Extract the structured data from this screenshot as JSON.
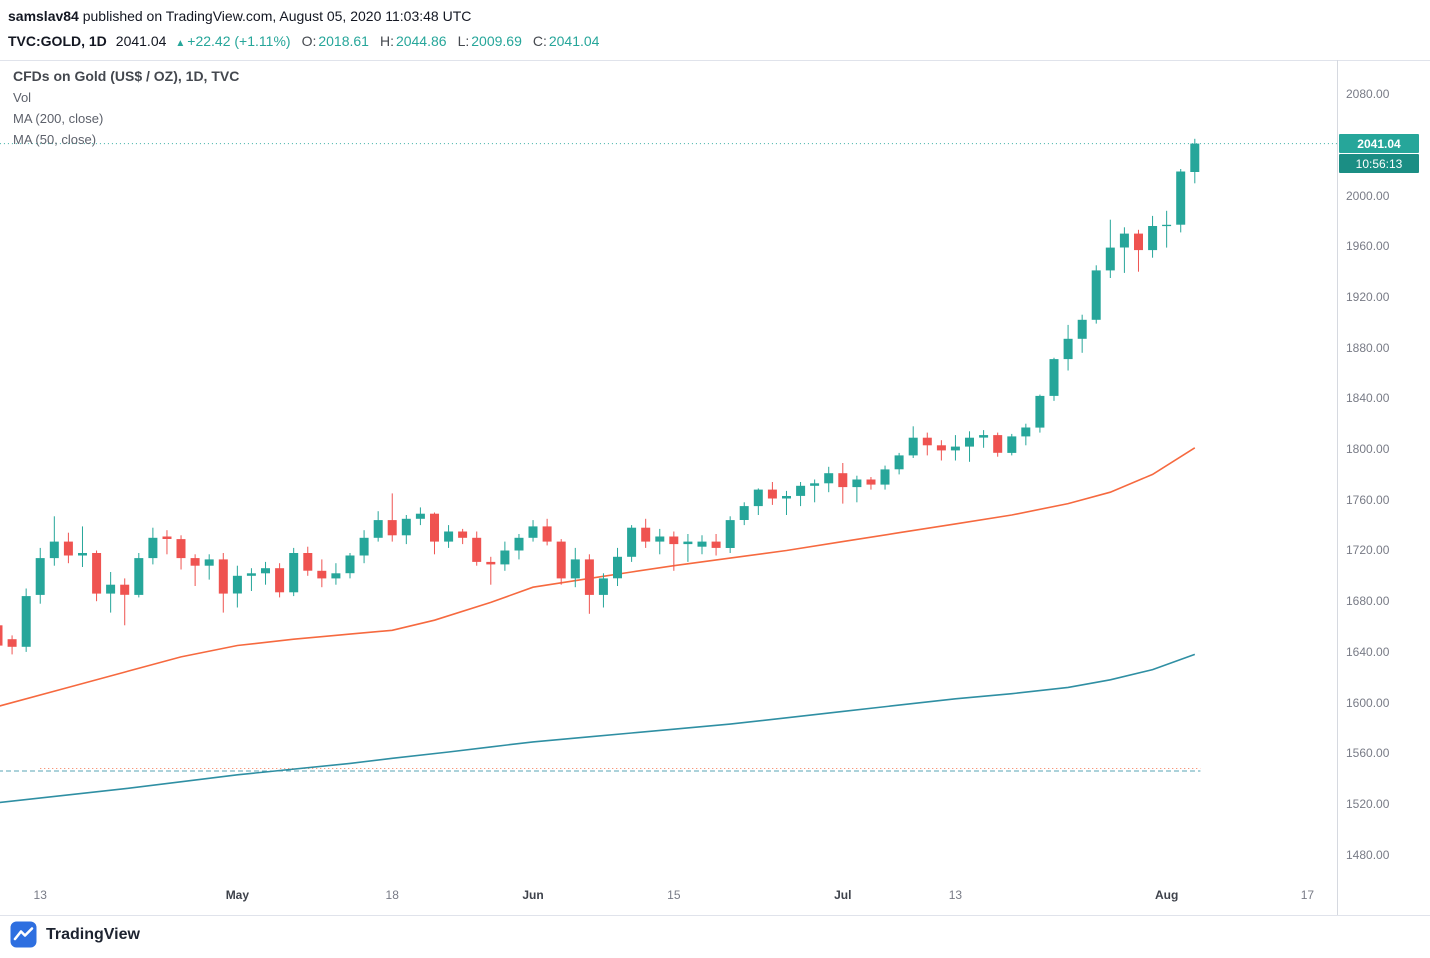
{
  "header": {
    "author": "samslav84",
    "published_text": " published on TradingView.com, August 05, 2020 11:03:48 UTC",
    "symbol": "TVC:GOLD, 1D",
    "last_price": "2041.04",
    "arrow": "▲",
    "change": "+22.42 (+1.11%)",
    "o_label": "O:",
    "o": "2018.61",
    "h_label": "H:",
    "h": "2044.86",
    "l_label": "L:",
    "l": "2009.69",
    "c_label": "C:",
    "c": "2041.04"
  },
  "legend": {
    "title": "CFDs on Gold (US$ / OZ), 1D, TVC",
    "items": [
      "Vol",
      "MA (200, close)",
      "MA (50, close)"
    ]
  },
  "price_axis": {
    "ticks": [
      "2080.00",
      "2000.00",
      "1960.00",
      "1920.00",
      "1880.00",
      "1840.00",
      "1800.00",
      "1760.00",
      "1720.00",
      "1680.00",
      "1640.00",
      "1600.00",
      "1560.00",
      "1520.00",
      "1480.00"
    ],
    "last_price_label": "2041.04",
    "last_price_value": 2041.04,
    "countdown": "10:56:13"
  },
  "footer": {
    "brand": "TradingView"
  },
  "colors": {
    "up": "#26a69a",
    "down": "#ef5350",
    "ma50": "#f6693f",
    "ma200": "#2f8fa3",
    "price_badge_bg": "#26a69a",
    "countdown_badge_bg": "#1b8e84",
    "change_text": "#26a69a"
  },
  "chart_data": {
    "type": "candlestick",
    "symbol": "TVC:GOLD",
    "timeframe": "1D",
    "title": "CFDs on Gold (US$ / OZ), 1D, TVC",
    "ylim": [
      1460,
      2107
    ],
    "price_tick_step": 40,
    "time_ticks": [
      {
        "label": "13",
        "i": 3,
        "major": false
      },
      {
        "label": "May",
        "i": 17,
        "major": true
      },
      {
        "label": "18",
        "i": 28,
        "major": false
      },
      {
        "label": "Jun",
        "i": 38,
        "major": true
      },
      {
        "label": "15",
        "i": 48,
        "major": false
      },
      {
        "label": "Jul",
        "i": 60,
        "major": true
      },
      {
        "label": "13",
        "i": 68,
        "major": false
      },
      {
        "label": "Aug",
        "i": 83,
        "major": true
      },
      {
        "label": "17",
        "i": 93,
        "major": false
      }
    ],
    "candles_columns": [
      "date",
      "open",
      "high",
      "low",
      "close"
    ],
    "candles": [
      [
        "2020-04-07",
        1661,
        1663,
        1640,
        1645
      ],
      [
        "2020-04-08",
        1650,
        1653,
        1638,
        1644
      ],
      [
        "2020-04-09",
        1644,
        1690,
        1640,
        1684
      ],
      [
        "2020-04-13",
        1685,
        1722,
        1678,
        1714
      ],
      [
        "2020-04-14",
        1714,
        1747,
        1708,
        1727
      ],
      [
        "2020-04-15",
        1727,
        1734,
        1710,
        1716
      ],
      [
        "2020-04-16",
        1716,
        1739,
        1707,
        1718
      ],
      [
        "2020-04-17",
        1718,
        1720,
        1680,
        1686
      ],
      [
        "2020-04-20",
        1686,
        1703,
        1671,
        1693
      ],
      [
        "2020-04-21",
        1693,
        1698,
        1661,
        1685
      ],
      [
        "2020-04-22",
        1685,
        1718,
        1683,
        1714
      ],
      [
        "2020-04-23",
        1714,
        1738,
        1709,
        1730
      ],
      [
        "2020-04-24",
        1731,
        1736,
        1717,
        1729
      ],
      [
        "2020-04-27",
        1729,
        1732,
        1705,
        1714
      ],
      [
        "2020-04-28",
        1714,
        1717,
        1692,
        1708
      ],
      [
        "2020-04-29",
        1708,
        1717,
        1697,
        1713
      ],
      [
        "2020-04-30",
        1713,
        1718,
        1671,
        1686
      ],
      [
        "2020-05-01",
        1686,
        1708,
        1675,
        1700
      ],
      [
        "2020-05-04",
        1700,
        1706,
        1688,
        1702
      ],
      [
        "2020-05-05",
        1702,
        1711,
        1693,
        1706
      ],
      [
        "2020-05-06",
        1706,
        1710,
        1683,
        1687
      ],
      [
        "2020-05-07",
        1687,
        1722,
        1684,
        1718
      ],
      [
        "2020-05-08",
        1718,
        1723,
        1700,
        1704
      ],
      [
        "2020-05-11",
        1704,
        1713,
        1691,
        1698
      ],
      [
        "2020-05-12",
        1698,
        1710,
        1693,
        1702
      ],
      [
        "2020-05-13",
        1702,
        1718,
        1698,
        1716
      ],
      [
        "2020-05-14",
        1716,
        1736,
        1710,
        1730
      ],
      [
        "2020-05-15",
        1730,
        1751,
        1727,
        1744
      ],
      [
        "2020-05-18",
        1744,
        1765,
        1727,
        1732
      ],
      [
        "2020-05-19",
        1732,
        1748,
        1725,
        1745
      ],
      [
        "2020-05-20",
        1745,
        1754,
        1740,
        1749
      ],
      [
        "2020-05-21",
        1749,
        1750,
        1717,
        1727
      ],
      [
        "2020-05-22",
        1727,
        1740,
        1722,
        1735
      ],
      [
        "2020-05-25",
        1735,
        1737,
        1725,
        1730
      ],
      [
        "2020-05-26",
        1730,
        1735,
        1708,
        1711
      ],
      [
        "2020-05-27",
        1711,
        1715,
        1693,
        1709
      ],
      [
        "2020-05-28",
        1709,
        1727,
        1704,
        1720
      ],
      [
        "2020-05-29",
        1720,
        1733,
        1713,
        1730
      ],
      [
        "2020-06-01",
        1730,
        1744,
        1727,
        1739
      ],
      [
        "2020-06-02",
        1739,
        1745,
        1724,
        1727
      ],
      [
        "2020-06-03",
        1727,
        1729,
        1693,
        1698
      ],
      [
        "2020-06-04",
        1698,
        1722,
        1691,
        1713
      ],
      [
        "2020-06-05",
        1713,
        1717,
        1670,
        1685
      ],
      [
        "2020-06-08",
        1685,
        1702,
        1675,
        1698
      ],
      [
        "2020-06-09",
        1698,
        1722,
        1692,
        1715
      ],
      [
        "2020-06-10",
        1715,
        1740,
        1711,
        1738
      ],
      [
        "2020-06-11",
        1738,
        1745,
        1722,
        1727
      ],
      [
        "2020-06-12",
        1727,
        1737,
        1717,
        1731
      ],
      [
        "2020-06-15",
        1731,
        1735,
        1704,
        1725
      ],
      [
        "2020-06-16",
        1725,
        1733,
        1711,
        1727
      ],
      [
        "2020-06-17",
        1723,
        1732,
        1717,
        1727
      ],
      [
        "2020-06-18",
        1727,
        1733,
        1716,
        1722
      ],
      [
        "2020-06-19",
        1722,
        1747,
        1718,
        1744
      ],
      [
        "2020-06-22",
        1744,
        1758,
        1740,
        1755
      ],
      [
        "2020-06-23",
        1755,
        1769,
        1748,
        1768
      ],
      [
        "2020-06-24",
        1768,
        1774,
        1756,
        1761
      ],
      [
        "2020-06-25",
        1761,
        1767,
        1748,
        1763
      ],
      [
        "2020-06-26",
        1763,
        1774,
        1755,
        1771
      ],
      [
        "2020-06-29",
        1771,
        1776,
        1758,
        1773
      ],
      [
        "2020-06-30",
        1773,
        1786,
        1766,
        1781
      ],
      [
        "2020-07-01",
        1781,
        1789,
        1757,
        1770
      ],
      [
        "2020-07-02",
        1770,
        1779,
        1758,
        1776
      ],
      [
        "2020-07-03",
        1776,
        1778,
        1768,
        1772
      ],
      [
        "2020-07-06",
        1772,
        1787,
        1768,
        1784
      ],
      [
        "2020-07-07",
        1784,
        1797,
        1780,
        1795
      ],
      [
        "2020-07-08",
        1795,
        1818,
        1793,
        1809
      ],
      [
        "2020-07-09",
        1809,
        1813,
        1795,
        1803
      ],
      [
        "2020-07-10",
        1803,
        1807,
        1791,
        1799
      ],
      [
        "2020-07-13",
        1799,
        1811,
        1791,
        1802
      ],
      [
        "2020-07-14",
        1802,
        1814,
        1790,
        1809
      ],
      [
        "2020-07-15",
        1809,
        1815,
        1801,
        1811
      ],
      [
        "2020-07-16",
        1811,
        1813,
        1794,
        1797
      ],
      [
        "2020-07-17",
        1797,
        1812,
        1795,
        1810
      ],
      [
        "2020-07-20",
        1810,
        1820,
        1803,
        1817
      ],
      [
        "2020-07-21",
        1817,
        1843,
        1813,
        1842
      ],
      [
        "2020-07-22",
        1842,
        1872,
        1838,
        1871
      ],
      [
        "2020-07-23",
        1871,
        1898,
        1862,
        1887
      ],
      [
        "2020-07-24",
        1887,
        1906,
        1876,
        1902
      ],
      [
        "2020-07-27",
        1902,
        1945,
        1899,
        1941
      ],
      [
        "2020-07-28",
        1941,
        1981,
        1935,
        1959
      ],
      [
        "2020-07-29",
        1959,
        1975,
        1939,
        1970
      ],
      [
        "2020-07-30",
        1970,
        1973,
        1940,
        1957
      ],
      [
        "2020-07-31",
        1957,
        1984,
        1951,
        1976
      ],
      [
        "2020-08-03",
        1976,
        1988,
        1959,
        1977
      ],
      [
        "2020-08-04",
        1977,
        2021,
        1971,
        2019
      ],
      [
        "2020-08-05",
        2018.61,
        2044.86,
        2009.69,
        2041.04
      ]
    ],
    "overlays": [
      {
        "name": "level-line-teal",
        "type": "hline",
        "value": 1546,
        "color": "#2f8fa3",
        "dash": "5 3",
        "opacity": 0.8,
        "from_i": 0,
        "to_i": 85.4
      },
      {
        "name": "level-line-orange",
        "type": "hline",
        "value": 1548,
        "color": "#f6693f",
        "dash": "1 3",
        "opacity": 0.9,
        "from_i": 3,
        "to_i": 85.4
      },
      {
        "name": "last-price-line",
        "type": "hline",
        "value": 2041.04,
        "color": "#26a69a",
        "dash": "1 3",
        "opacity": 0.9,
        "from_i": -1,
        "to_i": 96
      },
      {
        "name": "ma200-line",
        "type": "line",
        "color": "#2f8fa3",
        "points": [
          [
            0,
            1521
          ],
          [
            9,
            1532
          ],
          [
            17,
            1543
          ],
          [
            25,
            1552
          ],
          [
            28,
            1556
          ],
          [
            32,
            1561
          ],
          [
            35,
            1565
          ],
          [
            38,
            1569
          ],
          [
            42,
            1573
          ],
          [
            45,
            1576
          ],
          [
            48,
            1579
          ],
          [
            52,
            1583
          ],
          [
            56,
            1588
          ],
          [
            60,
            1593
          ],
          [
            64,
            1598
          ],
          [
            68,
            1603
          ],
          [
            72,
            1607
          ],
          [
            76,
            1612
          ],
          [
            79,
            1618
          ],
          [
            82,
            1626
          ],
          [
            85,
            1638
          ]
        ]
      },
      {
        "name": "ma50-line",
        "type": "line",
        "color": "#f6693f",
        "points": [
          [
            0,
            1597
          ],
          [
            5,
            1612
          ],
          [
            9,
            1624
          ],
          [
            13,
            1636
          ],
          [
            17,
            1645
          ],
          [
            21,
            1650
          ],
          [
            25,
            1654
          ],
          [
            28,
            1657
          ],
          [
            31,
            1665
          ],
          [
            35,
            1679
          ],
          [
            38,
            1691
          ],
          [
            42,
            1698
          ],
          [
            45,
            1703
          ],
          [
            48,
            1708
          ],
          [
            52,
            1714
          ],
          [
            56,
            1720
          ],
          [
            60,
            1727
          ],
          [
            64,
            1734
          ],
          [
            68,
            1741
          ],
          [
            72,
            1748
          ],
          [
            76,
            1757
          ],
          [
            79,
            1766
          ],
          [
            82,
            1780
          ],
          [
            85,
            1801
          ]
        ]
      }
    ]
  }
}
